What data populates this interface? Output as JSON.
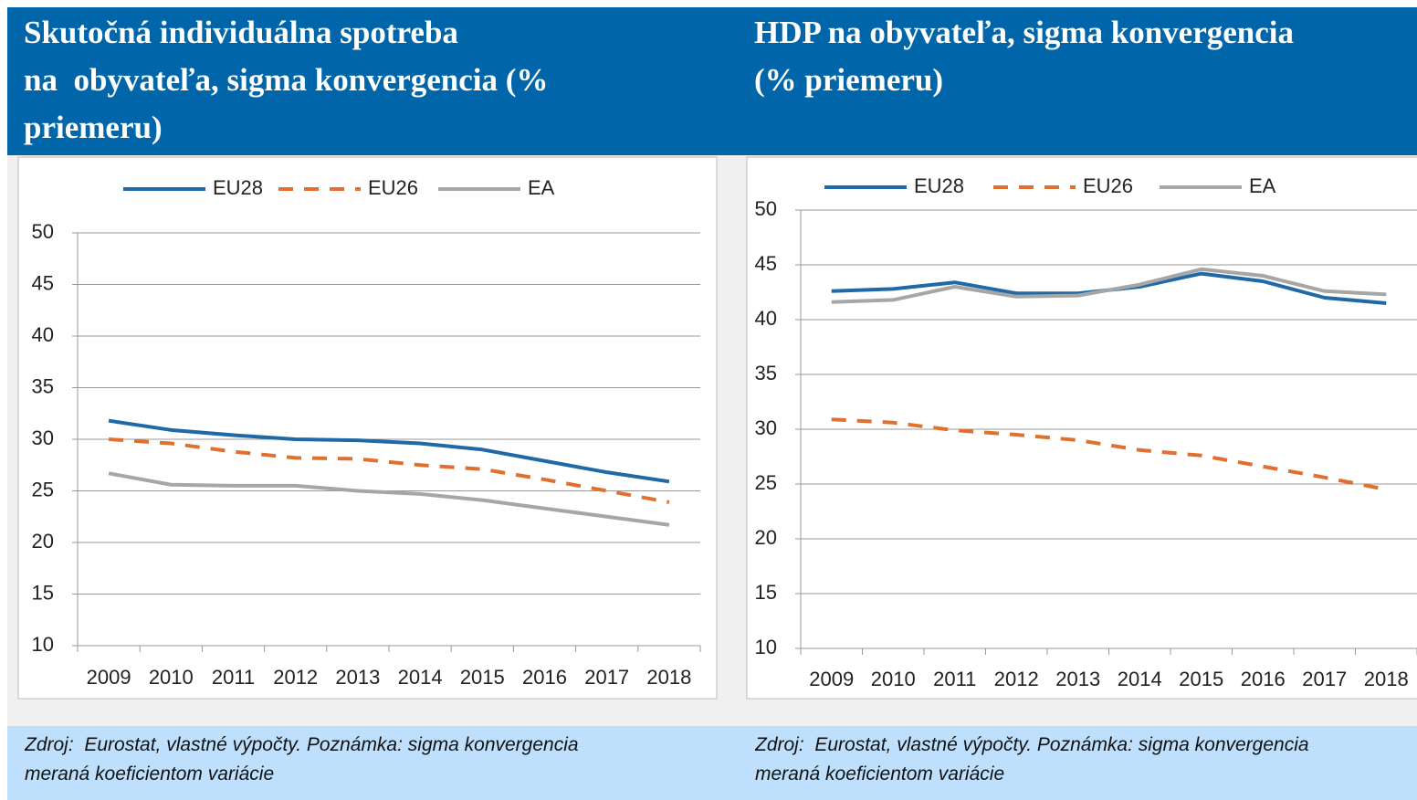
{
  "chart_data": [
    {
      "type": "line",
      "title": "Skutočná individuálna spotreba\nna  obyvateľa, sigma konvergencia (%\npriemeru)",
      "categories": [
        "2009",
        "2010",
        "2011",
        "2012",
        "2013",
        "2014",
        "2015",
        "2016",
        "2017",
        "2018"
      ],
      "series": [
        {
          "name": "EU28",
          "color": "#1f69a9",
          "dashed": false,
          "values": [
            31.8,
            30.9,
            30.4,
            30.0,
            29.9,
            29.6,
            29.0,
            27.9,
            26.8,
            25.9
          ]
        },
        {
          "name": "EU26",
          "color": "#e0702f",
          "dashed": true,
          "values": [
            30.0,
            29.6,
            28.8,
            28.2,
            28.1,
            27.5,
            27.1,
            26.1,
            25.0,
            23.9
          ]
        },
        {
          "name": "EA",
          "color": "#a6a6a6",
          "dashed": false,
          "values": [
            26.7,
            25.6,
            25.5,
            25.5,
            25.0,
            24.7,
            24.1,
            23.3,
            22.5,
            21.7
          ]
        }
      ],
      "ylim": [
        10,
        50
      ],
      "yticks": [
        10,
        15,
        20,
        25,
        30,
        35,
        40,
        45,
        50
      ],
      "grid": true,
      "legend": "top"
    },
    {
      "type": "line",
      "title": "HDP na obyvateľa, sigma konvergencia\n(% priemeru)",
      "categories": [
        "2009",
        "2010",
        "2011",
        "2012",
        "2013",
        "2014",
        "2015",
        "2016",
        "2017",
        "2018"
      ],
      "series": [
        {
          "name": "EU28",
          "color": "#1f69a9",
          "dashed": false,
          "values": [
            42.6,
            42.8,
            43.4,
            42.4,
            42.4,
            43.0,
            44.2,
            43.5,
            42.0,
            41.5
          ]
        },
        {
          "name": "EU26",
          "color": "#e0702f",
          "dashed": true,
          "values": [
            30.9,
            30.6,
            29.9,
            29.5,
            29.0,
            28.1,
            27.6,
            26.6,
            25.6,
            24.5
          ]
        },
        {
          "name": "EA",
          "color": "#a6a6a6",
          "dashed": false,
          "values": [
            41.6,
            41.8,
            43.0,
            42.1,
            42.2,
            43.2,
            44.6,
            44.0,
            42.6,
            42.3
          ]
        }
      ],
      "ylim": [
        10,
        50
      ],
      "yticks": [
        10,
        15,
        20,
        25,
        30,
        35,
        40,
        45,
        50
      ],
      "grid": true,
      "legend": "top"
    }
  ],
  "footers": [
    "Zdroj:  Eurostat, vlastné výpočty. Poznámka: sigma konvergencia\nmeraná koeficientom variácie",
    "Zdroj:  Eurostat, vlastné výpočty. Poznámka: sigma konvergencia\nmeraná koeficientom variácie"
  ]
}
